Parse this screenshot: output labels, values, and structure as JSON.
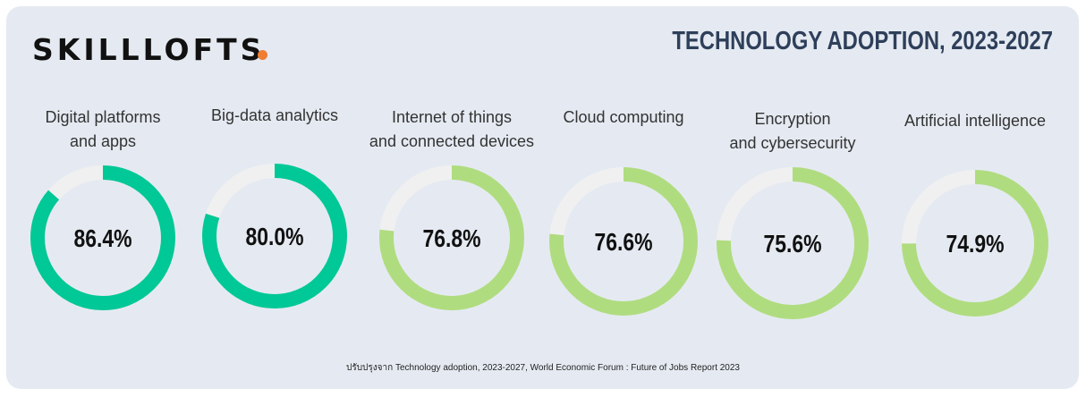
{
  "brand": {
    "logo_text": "SKILLLOFTS",
    "dot_color": "#ef7d32"
  },
  "title": "TECHNOLOGY ADOPTION, 2023-2027",
  "footnote": "ปรับปรุงจาก Technology adoption, 2023-2027, World Economic Forum : Future of Jobs Report 2023",
  "colors": {
    "high": "#00c896",
    "other": "#b0dc80",
    "remainder": "#f0f0f0",
    "background": "#e5eaf2",
    "title": "#2e3f5a"
  },
  "chart_data": {
    "type": "donut",
    "unit": "%",
    "items": [
      {
        "label_lines": [
          "Digital platforms",
          "and apps"
        ],
        "value": 86.4,
        "display": "86.4%",
        "color": "#00c896"
      },
      {
        "label_lines": [
          "Big-data analytics"
        ],
        "value": 80.0,
        "display": "80.0%",
        "color": "#00c896"
      },
      {
        "label_lines": [
          "Internet of things",
          "and connected devices"
        ],
        "value": 76.8,
        "display": "76.8%",
        "color": "#b0dc80"
      },
      {
        "label_lines": [
          "Cloud computing"
        ],
        "value": 76.6,
        "display": "76.6%",
        "color": "#b0dc80"
      },
      {
        "label_lines": [
          "Encryption",
          "and cybersecurity"
        ],
        "value": 75.6,
        "display": "75.6%",
        "color": "#b0dc80"
      },
      {
        "label_lines": [
          "Artificial intelligence"
        ],
        "value": 74.9,
        "display": "74.9%",
        "color": "#b0dc80"
      }
    ]
  }
}
